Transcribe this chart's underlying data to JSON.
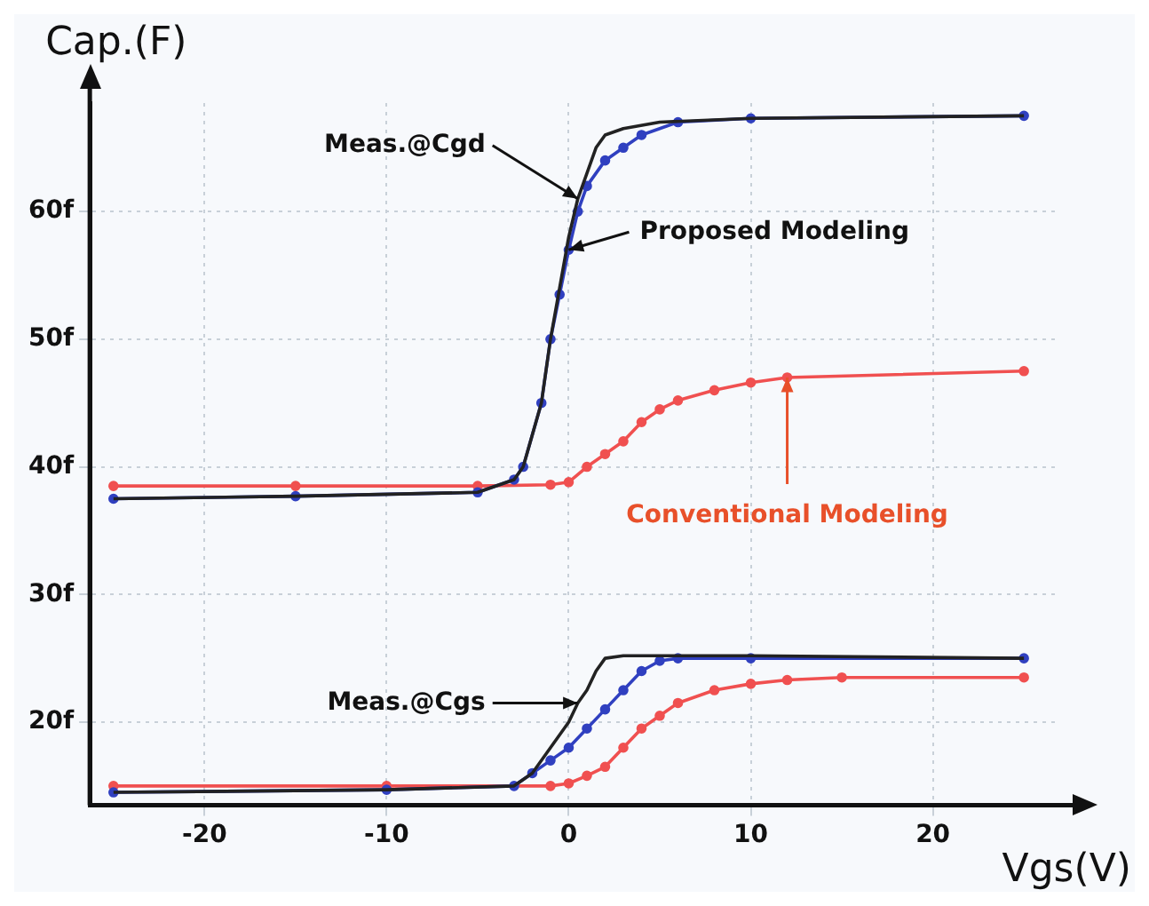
{
  "chart_data": {
    "type": "line",
    "xlabel": "Vgs(V)",
    "ylabel": "Cap.(F)",
    "xlim": [
      -26.3,
      26.7
    ],
    "xticks": [
      -20,
      -10,
      0,
      10,
      20
    ],
    "ylim": [
      13.5,
      68.5
    ],
    "yticks": [
      {
        "value": 20,
        "label": "20f"
      },
      {
        "value": 30,
        "label": "30f"
      },
      {
        "value": 40,
        "label": "40f"
      },
      {
        "value": 50,
        "label": "50f"
      },
      {
        "value": 60,
        "label": "60f"
      }
    ],
    "grid": true,
    "legend": false,
    "series": [
      {
        "color": "#222222",
        "marker": "none",
        "x": [
          -25,
          -15,
          -5,
          -3,
          -2.5,
          -1.5,
          -1,
          -0.5,
          0,
          0.5,
          1,
          1.5,
          2,
          3,
          5,
          10,
          25
        ],
        "values": [
          37.5,
          37.7,
          38,
          39,
          40,
          45,
          50,
          54,
          58,
          61,
          63,
          65,
          66,
          66.5,
          67,
          67.3,
          67.5
        ]
      },
      {
        "color": "#3040c0",
        "marker": "circle",
        "x": [
          -25,
          -15,
          -5,
          -3,
          -2.5,
          -1.5,
          -1,
          -0.5,
          0,
          0.5,
          1,
          2,
          3,
          4,
          6,
          10,
          25
        ],
        "values": [
          37.5,
          37.7,
          38,
          39,
          40,
          45,
          50,
          53.5,
          57,
          60,
          62,
          64,
          65,
          66,
          67,
          67.3,
          67.5
        ]
      },
      {
        "color": "#f05050",
        "marker": "circle",
        "x": [
          -25,
          -15,
          -5,
          -1,
          0,
          1,
          2,
          3,
          4,
          5,
          6,
          8,
          10,
          12,
          25
        ],
        "values": [
          38.5,
          38.5,
          38.5,
          38.6,
          38.8,
          40,
          41,
          42,
          43.5,
          44.5,
          45.2,
          46,
          46.6,
          47,
          47.5
        ]
      },
      {
        "color": "#222222",
        "marker": "none",
        "x": [
          -25,
          -10,
          -3,
          -2,
          -1,
          0,
          0.5,
          1,
          1.5,
          2,
          3,
          10,
          25
        ],
        "values": [
          14.5,
          14.7,
          15,
          16,
          18,
          20,
          21.5,
          22.5,
          24,
          25,
          25.2,
          25.2,
          25
        ]
      },
      {
        "color": "#3040c0",
        "marker": "circle",
        "x": [
          -25,
          -10,
          -3,
          -2,
          -1,
          0,
          1,
          2,
          3,
          4,
          5,
          6,
          10,
          25
        ],
        "values": [
          14.5,
          14.7,
          15,
          16,
          17,
          18,
          19.5,
          21,
          22.5,
          24,
          24.8,
          25,
          25,
          25
        ]
      },
      {
        "color": "#f05050",
        "marker": "circle",
        "x": [
          -25,
          -10,
          -1,
          0,
          1,
          2,
          3,
          4,
          5,
          6,
          8,
          10,
          12,
          15,
          25
        ],
        "values": [
          15,
          15,
          15,
          15.2,
          15.8,
          16.5,
          18,
          19.5,
          20.5,
          21.5,
          22.5,
          23,
          23.3,
          23.5,
          23.5
        ]
      }
    ],
    "annotations": [
      {
        "text": "Meas.@Cgd",
        "x": 0.5,
        "y": 61
      },
      {
        "text": "Proposed Modeling",
        "x": 0,
        "y": 57
      },
      {
        "text": "Conventional Modeling",
        "x": 12,
        "y": 47
      },
      {
        "text": "Meas.@Cgs",
        "x": 0.5,
        "y": 21.5
      }
    ]
  }
}
